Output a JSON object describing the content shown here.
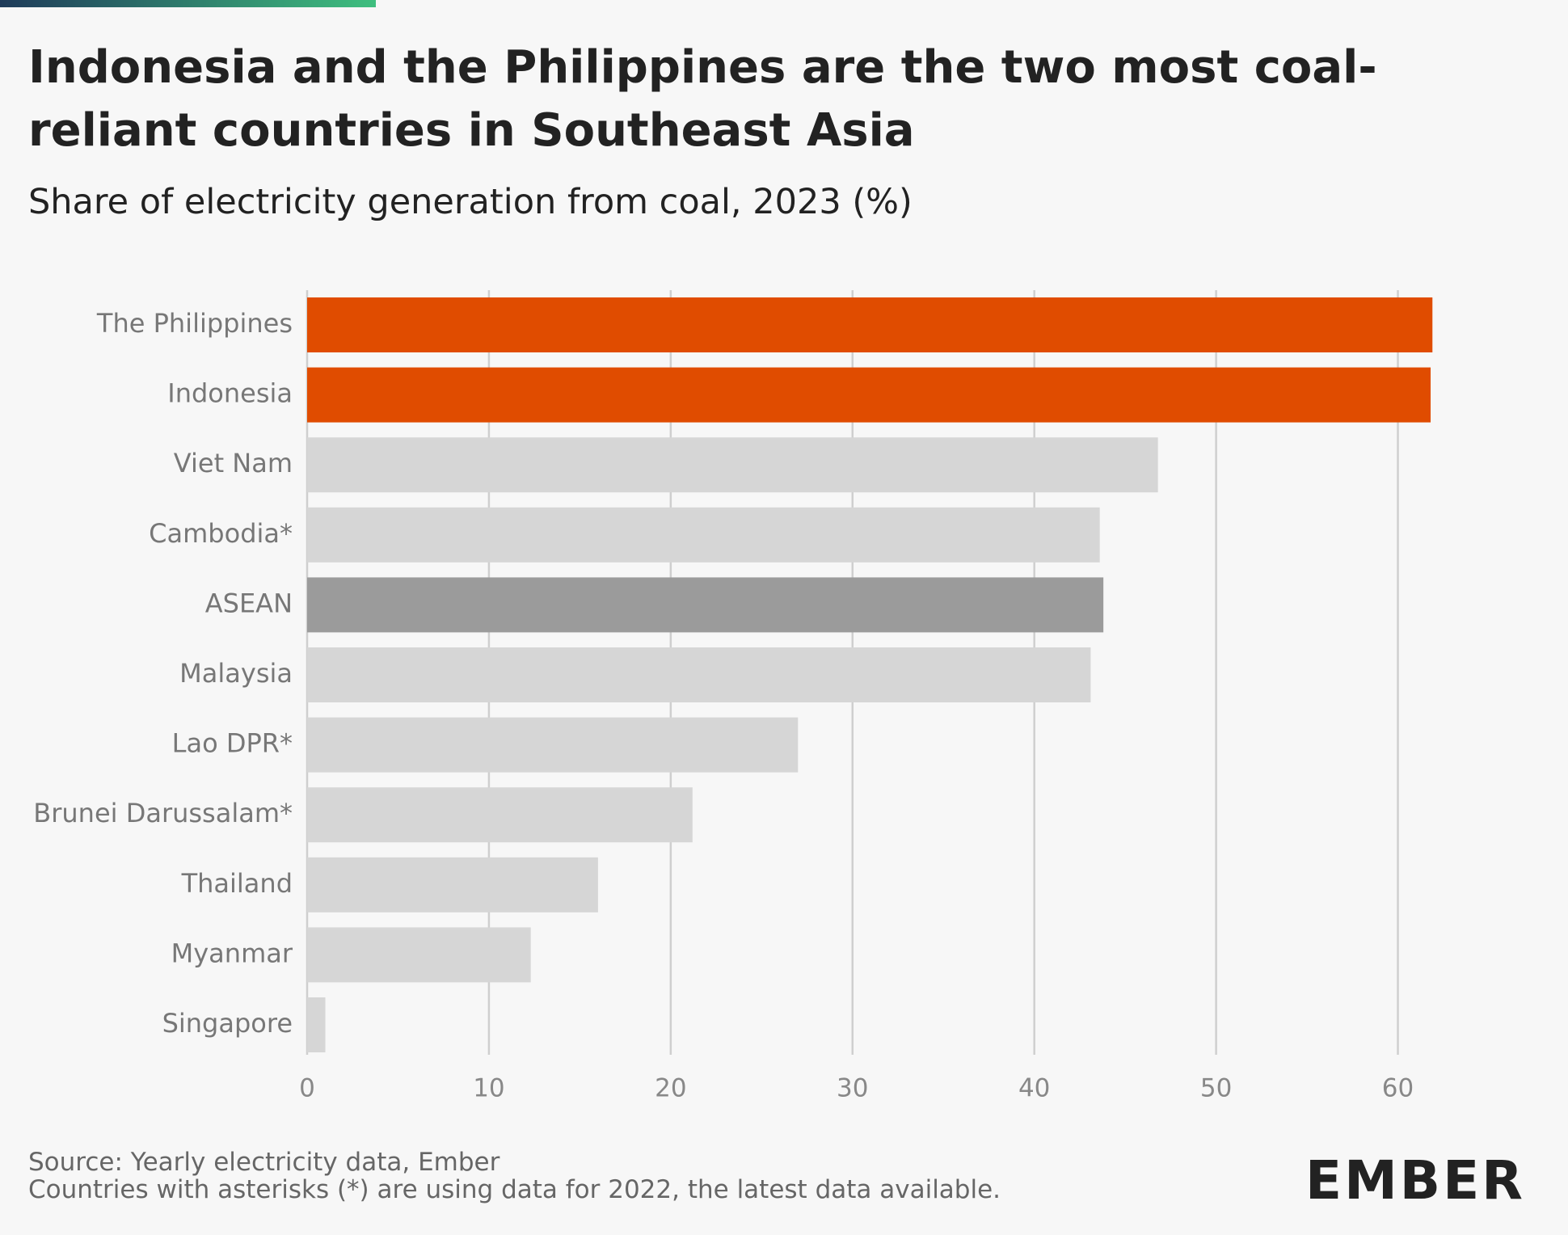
{
  "chart_data": {
    "type": "bar",
    "orientation": "horizontal",
    "title": "Indonesia and the Philippines are the two most coal-reliant countries in Southeast Asia",
    "subtitle": "Share of electricity generation from coal, 2023 (%)",
    "categories": [
      "The Philippines",
      "Indonesia",
      "Viet Nam",
      "Cambodia*",
      "ASEAN",
      "Malaysia",
      "Lao DPR*",
      "Brunei Darussalam*",
      "Thailand",
      "Myanmar",
      "Singapore"
    ],
    "values": [
      61.9,
      61.8,
      46.8,
      43.6,
      43.8,
      43.1,
      27.0,
      21.2,
      16.0,
      12.3,
      1.0
    ],
    "colors": [
      "#e04c00",
      "#e04c00",
      "#d6d6d6",
      "#d6d6d6",
      "#9b9b9b",
      "#d6d6d6",
      "#d6d6d6",
      "#d6d6d6",
      "#d6d6d6",
      "#d6d6d6",
      "#d6d6d6"
    ],
    "xlim": [
      0,
      65
    ],
    "xticks": [
      0,
      10,
      20,
      30,
      40,
      50,
      60
    ],
    "grid": true,
    "source": "Source: Yearly electricity data, Ember",
    "note": "Countries with asterisks (*) are using data for 2022, the latest data available.",
    "logo": "EMBER"
  }
}
